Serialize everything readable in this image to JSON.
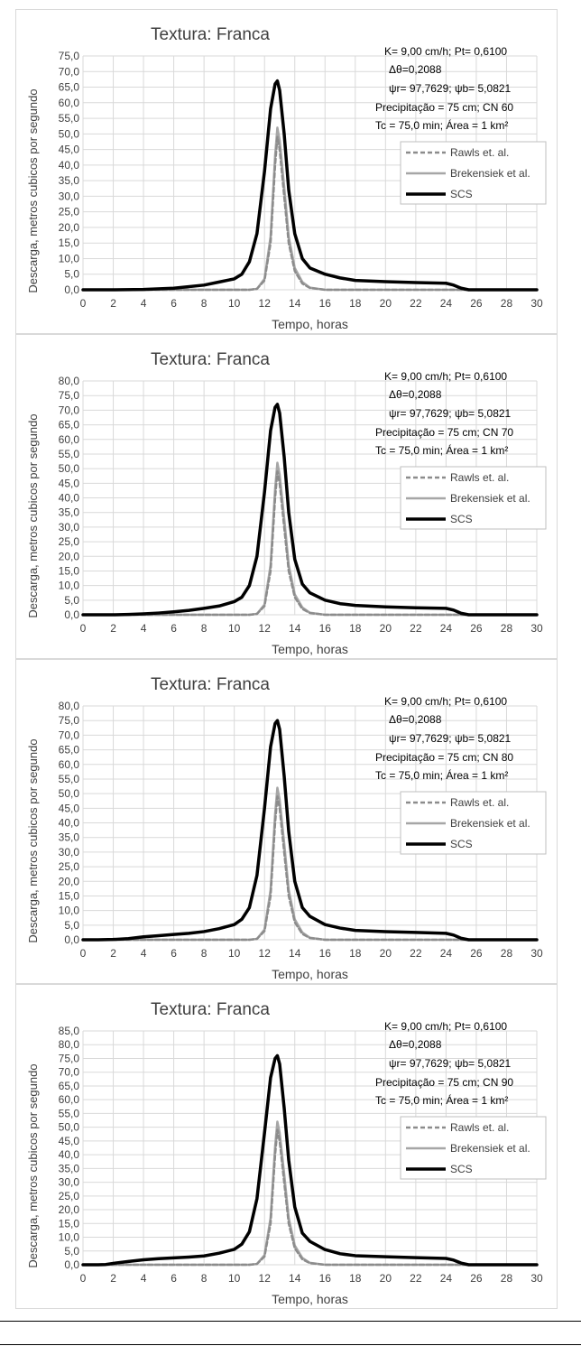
{
  "colors": {
    "rawls": "#a6a6a6",
    "brekensiek": "#a6a6a6",
    "scs": "#000000",
    "grid": "#d9d9d9",
    "text": "#404040"
  },
  "chart_data": [
    {
      "type": "line",
      "title": "Textura: Franca",
      "xlabel": "Tempo, horas",
      "ylabel": "Descarga, metros cubicos por segundo",
      "xlim": [
        0,
        30
      ],
      "ylim": [
        0,
        75
      ],
      "xtick_labels": [
        "0",
        "2",
        "4",
        "6",
        "8",
        "10",
        "12",
        "14",
        "16",
        "18",
        "20",
        "22",
        "24",
        "26",
        "28",
        "30"
      ],
      "ytick_labels": [
        "0,0",
        "5,0",
        "10,0",
        "15,0",
        "20,0",
        "25,0",
        "30,0",
        "35,0",
        "40,0",
        "45,0",
        "50,0",
        "55,0",
        "60,0",
        "65,0",
        "70,0",
        "75,0"
      ],
      "grid": true,
      "legend_position": "right",
      "annotations": [
        "K= 9,00 cm/h; Pt= 0,6100",
        "Δθ=0,2088",
        "ψr= 97,7629;  ψb= 5,0821",
        "Precipitação = 75  cm; CN 60",
        "Tc = 75,0 min; Área = 1 km²"
      ],
      "series": [
        {
          "name": "Rawls et. al.",
          "style": "dashed",
          "x": [
            0,
            10,
            11,
            11.5,
            12,
            12.4,
            12.7,
            12.85,
            13,
            13.3,
            13.6,
            14,
            14.5,
            15,
            16,
            30
          ],
          "y": [
            0,
            0,
            0,
            0.3,
            3,
            15,
            40,
            49,
            45,
            30,
            15,
            6,
            2,
            0.6,
            0,
            0
          ]
        },
        {
          "name": "Brekensiek et al.",
          "style": "solid",
          "x": [
            0,
            10,
            11,
            11.5,
            12,
            12.4,
            12.7,
            12.85,
            13,
            13.3,
            13.6,
            14,
            14.5,
            15,
            16,
            30
          ],
          "y": [
            0,
            0,
            0,
            0.3,
            3.5,
            17,
            43,
            52,
            48,
            33,
            17,
            7,
            2.5,
            0.7,
            0,
            0
          ]
        },
        {
          "name": "SCS",
          "style": "solid",
          "x": [
            0,
            2,
            4,
            6,
            8,
            9,
            10,
            10.5,
            11,
            11.5,
            12,
            12.4,
            12.7,
            12.85,
            13,
            13.3,
            13.6,
            14,
            14.5,
            15,
            16,
            17,
            18,
            20,
            22,
            24,
            24.5,
            25,
            25.5,
            26,
            30
          ],
          "y": [
            0,
            0,
            0.1,
            0.5,
            1.5,
            2.5,
            3.5,
            5,
            9,
            18,
            38,
            58,
            66,
            67,
            64,
            50,
            32,
            18,
            10,
            7,
            5,
            3.8,
            3,
            2.6,
            2.3,
            2.1,
            1.5,
            0.5,
            0,
            0,
            0
          ]
        }
      ]
    },
    {
      "type": "line",
      "title": "Textura: Franca",
      "xlabel": "Tempo, horas",
      "ylabel": "Descarga, metros cubicos por segundo",
      "xlim": [
        0,
        30
      ],
      "ylim": [
        0,
        80
      ],
      "xtick_labels": [
        "0",
        "2",
        "4",
        "6",
        "8",
        "10",
        "12",
        "14",
        "16",
        "18",
        "20",
        "22",
        "24",
        "26",
        "28",
        "30"
      ],
      "ytick_labels": [
        "0,0",
        "5,0",
        "10,0",
        "15,0",
        "20,0",
        "25,0",
        "30,0",
        "35,0",
        "40,0",
        "45,0",
        "50,0",
        "55,0",
        "60,0",
        "65,0",
        "70,0",
        "75,0",
        "80,0"
      ],
      "grid": true,
      "legend_position": "right",
      "annotations": [
        "K= 9,00 cm/h; Pt= 0,6100",
        "Δθ=0,2088",
        "ψr= 97,7629;  ψb= 5,0821",
        "Precipitação = 75  cm; CN 70",
        "Tc = 75,0 min; Área = 1 km²"
      ],
      "series": [
        {
          "name": "Rawls et. al.",
          "style": "dashed",
          "x": [
            0,
            10,
            11,
            11.5,
            12,
            12.4,
            12.7,
            12.85,
            13,
            13.3,
            13.6,
            14,
            14.5,
            15,
            16,
            30
          ],
          "y": [
            0,
            0,
            0,
            0.3,
            3,
            15,
            40,
            49,
            45,
            30,
            15,
            6,
            2,
            0.6,
            0,
            0
          ]
        },
        {
          "name": "Brekensiek et al.",
          "style": "solid",
          "x": [
            0,
            10,
            11,
            11.5,
            12,
            12.4,
            12.7,
            12.85,
            13,
            13.3,
            13.6,
            14,
            14.5,
            15,
            16,
            30
          ],
          "y": [
            0,
            0,
            0,
            0.3,
            3.5,
            17,
            43,
            52,
            48,
            33,
            17,
            7,
            2.5,
            0.7,
            0,
            0
          ]
        },
        {
          "name": "SCS",
          "style": "solid",
          "x": [
            0,
            2,
            3,
            4,
            5,
            6,
            7,
            8,
            9,
            10,
            10.5,
            11,
            11.5,
            12,
            12.4,
            12.7,
            12.85,
            13,
            13.3,
            13.6,
            14,
            14.5,
            15,
            16,
            17,
            18,
            20,
            22,
            24,
            24.5,
            25,
            25.5,
            26,
            30
          ],
          "y": [
            0,
            0,
            0.1,
            0.3,
            0.6,
            1,
            1.5,
            2.2,
            3,
            4.5,
            6,
            10,
            20,
            42,
            63,
            71,
            72,
            69,
            54,
            35,
            19,
            10.5,
            7.5,
            5,
            3.8,
            3.2,
            2.7,
            2.4,
            2.2,
            1.6,
            0.5,
            0,
            0,
            0
          ]
        }
      ]
    },
    {
      "type": "line",
      "title": "Textura: Franca",
      "xlabel": "Tempo, horas",
      "ylabel": "Descarga, metros cubicos por segundo",
      "xlim": [
        0,
        30
      ],
      "ylim": [
        0,
        80
      ],
      "xtick_labels": [
        "0",
        "2",
        "4",
        "6",
        "8",
        "10",
        "12",
        "14",
        "16",
        "18",
        "20",
        "22",
        "24",
        "26",
        "28",
        "30"
      ],
      "ytick_labels": [
        "0,0",
        "5,0",
        "10,0",
        "15,0",
        "20,0",
        "25,0",
        "30,0",
        "35,0",
        "40,0",
        "45,0",
        "50,0",
        "55,0",
        "60,0",
        "65,0",
        "70,0",
        "75,0",
        "80,0"
      ],
      "grid": true,
      "legend_position": "right",
      "annotations": [
        "K= 9,00 cm/h; Pt= 0,6100",
        "Δθ=0,2088",
        "ψr= 97,7629;  ψb= 5,0821",
        "Precipitação = 75  cm; CN 80",
        "Tc = 75,0 min; Área = 1 km²"
      ],
      "series": [
        {
          "name": "Rawls et. al.",
          "style": "dashed",
          "x": [
            0,
            10,
            11,
            11.5,
            12,
            12.4,
            12.7,
            12.85,
            13,
            13.3,
            13.6,
            14,
            14.5,
            15,
            16,
            30
          ],
          "y": [
            0,
            0,
            0,
            0.3,
            3,
            15,
            40,
            49,
            45,
            30,
            15,
            6,
            2,
            0.6,
            0,
            0
          ]
        },
        {
          "name": "Brekensiek et al.",
          "style": "solid",
          "x": [
            0,
            10,
            11,
            11.5,
            12,
            12.4,
            12.7,
            12.85,
            13,
            13.3,
            13.6,
            14,
            14.5,
            15,
            16,
            30
          ],
          "y": [
            0,
            0,
            0,
            0.3,
            3.5,
            17,
            43,
            52,
            48,
            33,
            17,
            7,
            2.5,
            0.7,
            0,
            0
          ]
        },
        {
          "name": "SCS",
          "style": "solid",
          "x": [
            0,
            1,
            2,
            3,
            4,
            5,
            6,
            7,
            8,
            9,
            10,
            10.5,
            11,
            11.5,
            12,
            12.4,
            12.7,
            12.85,
            13,
            13.3,
            13.6,
            14,
            14.5,
            15,
            16,
            17,
            18,
            20,
            22,
            24,
            24.5,
            25,
            25.5,
            26,
            30
          ],
          "y": [
            0,
            0,
            0.1,
            0.4,
            1,
            1.4,
            1.8,
            2.2,
            2.8,
            3.8,
            5.2,
            7,
            11,
            22,
            45,
            66,
            74,
            75,
            72,
            56,
            37,
            20,
            11,
            8,
            5.2,
            4,
            3.2,
            2.8,
            2.5,
            2.2,
            1.6,
            0.5,
            0,
            0,
            0
          ]
        }
      ]
    },
    {
      "type": "line",
      "title": "Textura: Franca",
      "xlabel": "Tempo, horas",
      "ylabel": "Descarga, metros cubicos por segundo",
      "xlim": [
        0,
        30
      ],
      "ylim": [
        0,
        85
      ],
      "xtick_labels": [
        "0",
        "2",
        "4",
        "6",
        "8",
        "10",
        "12",
        "14",
        "16",
        "18",
        "20",
        "22",
        "24",
        "26",
        "28",
        "30"
      ],
      "ytick_labels": [
        "0,0",
        "5,0",
        "10,0",
        "15,0",
        "20,0",
        "25,0",
        "30,0",
        "35,0",
        "40,0",
        "45,0",
        "50,0",
        "55,0",
        "60,0",
        "65,0",
        "70,0",
        "75,0",
        "80,0",
        "85,0"
      ],
      "grid": true,
      "legend_position": "right",
      "annotations": [
        "K= 9,00 cm/h; Pt= 0,6100",
        "Δθ=0,2088",
        "ψr= 97,7629;  ψb= 5,0821",
        "Precipitação = 75  cm; CN 90",
        "Tc = 75,0 min; Área = 1 km²"
      ],
      "series": [
        {
          "name": "Rawls et. al.",
          "style": "dashed",
          "x": [
            0,
            10,
            11,
            11.5,
            12,
            12.4,
            12.7,
            12.85,
            13,
            13.3,
            13.6,
            14,
            14.5,
            15,
            16,
            30
          ],
          "y": [
            0,
            0,
            0,
            0.3,
            3,
            15,
            40,
            49,
            45,
            30,
            15,
            6,
            2,
            0.6,
            0,
            0
          ]
        },
        {
          "name": "Brekensiek et al.",
          "style": "solid",
          "x": [
            0,
            10,
            11,
            11.5,
            12,
            12.4,
            12.7,
            12.85,
            13,
            13.3,
            13.6,
            14,
            14.5,
            15,
            16,
            30
          ],
          "y": [
            0,
            0,
            0,
            0.3,
            3.5,
            17,
            43,
            52,
            48,
            33,
            17,
            7,
            2.5,
            0.7,
            0,
            0
          ]
        },
        {
          "name": "SCS",
          "style": "solid",
          "x": [
            0,
            1,
            1.5,
            2,
            3,
            4,
            5,
            6,
            7,
            8,
            9,
            10,
            10.5,
            11,
            11.5,
            12,
            12.4,
            12.7,
            12.85,
            13,
            13.3,
            13.6,
            14,
            14.5,
            15,
            16,
            17,
            18,
            20,
            22,
            24,
            24.5,
            25,
            25.5,
            26,
            30
          ],
          "y": [
            0,
            0,
            0.1,
            0.5,
            1.2,
            1.8,
            2.2,
            2.5,
            2.8,
            3.2,
            4.2,
            5.6,
            7.5,
            12,
            24,
            48,
            68,
            75,
            76,
            73,
            57,
            38,
            21,
            11.5,
            8.5,
            5.5,
            4,
            3.3,
            2.9,
            2.6,
            2.3,
            1.7,
            0.6,
            0,
            0,
            0
          ]
        }
      ]
    }
  ]
}
